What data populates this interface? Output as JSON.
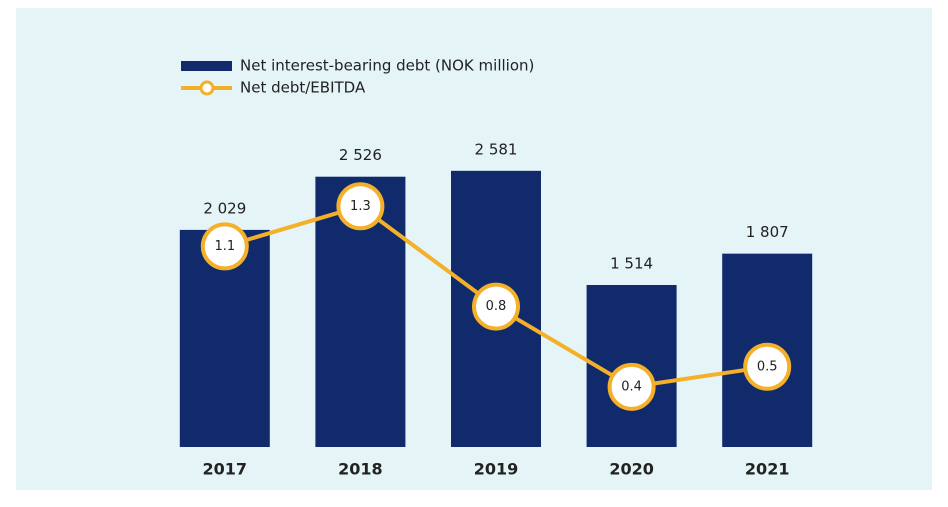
{
  "chart_data": {
    "type": "bar",
    "categories": [
      "2017",
      "2018",
      "2019",
      "2020",
      "2021"
    ],
    "series": [
      {
        "name": "Net interest-bearing debt (NOK million)",
        "type": "bar",
        "color": "#102a6b",
        "values": [
          2029,
          2526,
          2581,
          1514,
          1807
        ],
        "value_labels": [
          "2 029",
          "2 526",
          "2 581",
          "1 514",
          "1 807"
        ]
      },
      {
        "name": "Net debt/EBITDA",
        "type": "line",
        "axis": "y2",
        "color": "#f5b02a",
        "values": [
          1.1,
          1.3,
          0.8,
          0.4,
          0.5
        ]
      }
    ],
    "ylim": [
      0,
      3000
    ],
    "y2lim": [
      0.1,
      1.7
    ],
    "legend": "top-left",
    "grid": false
  }
}
